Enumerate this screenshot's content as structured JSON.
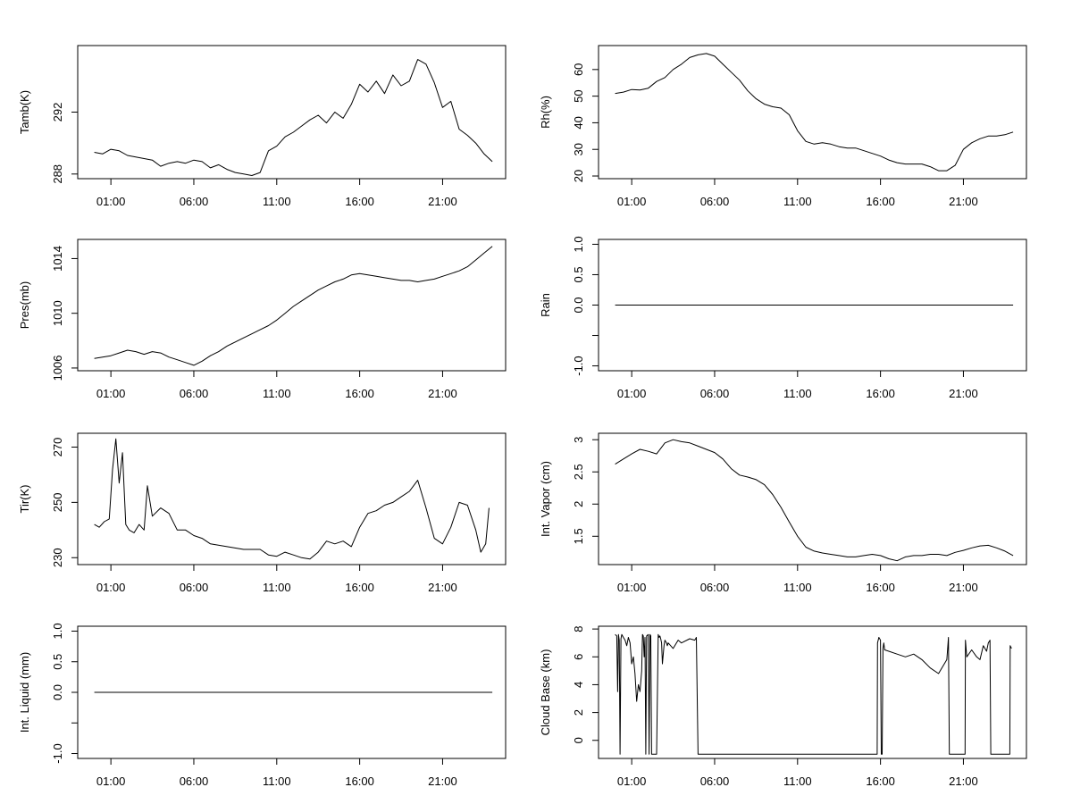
{
  "chart_data": [
    {
      "type": "line",
      "title": "",
      "xlabel": "",
      "ylabel": "Tamb(K)",
      "x_ticks": [
        "01:00",
        "06:00",
        "11:00",
        "16:00",
        "21:00"
      ],
      "x_tick_hours": [
        1,
        6,
        11,
        16,
        21
      ],
      "xlim": [
        -1,
        24.8
      ],
      "ylim": [
        287.7,
        296.3
      ],
      "y_ticks": [
        288,
        292
      ],
      "series": [
        {
          "name": "Tamb",
          "x": [
            0,
            0.5,
            1,
            1.5,
            2,
            2.5,
            3,
            3.5,
            4,
            4.5,
            5,
            5.5,
            6,
            6.5,
            7,
            7.5,
            8,
            8.5,
            9,
            9.5,
            10,
            10.5,
            11,
            11.5,
            12,
            12.5,
            13,
            13.5,
            14,
            14.5,
            15,
            15.5,
            16,
            16.5,
            17,
            17.5,
            18,
            18.5,
            19,
            19.5,
            20,
            20.5,
            21,
            21.5,
            22,
            22.5,
            23,
            23.5,
            24
          ],
          "values": [
            289.4,
            289.3,
            289.6,
            289.5,
            289.2,
            289.1,
            289,
            288.9,
            288.5,
            288.7,
            288.8,
            288.7,
            288.9,
            288.8,
            288.4,
            288.6,
            288.3,
            288.1,
            288,
            287.9,
            288.1,
            289.5,
            289.8,
            290.4,
            290.7,
            291.1,
            291.5,
            291.8,
            291.3,
            292,
            291.6,
            292.5,
            293.8,
            293.3,
            294,
            293.2,
            294.4,
            293.7,
            294,
            295.4,
            295.1,
            293.9,
            292.3,
            292.7,
            290.9,
            290.5,
            290,
            289.3,
            288.8
          ]
        }
      ]
    },
    {
      "type": "line",
      "title": "",
      "xlabel": "",
      "ylabel": "Rh(%)",
      "x_ticks": [
        "01:00",
        "06:00",
        "11:00",
        "16:00",
        "21:00"
      ],
      "x_tick_hours": [
        1,
        6,
        11,
        16,
        21
      ],
      "xlim": [
        -1,
        24.8
      ],
      "ylim": [
        19,
        69
      ],
      "y_ticks": [
        20,
        30,
        40,
        50,
        60
      ],
      "series": [
        {
          "name": "Rh",
          "x": [
            0,
            0.5,
            1,
            1.5,
            2,
            2.5,
            3,
            3.5,
            4,
            4.5,
            5,
            5.5,
            6,
            6.5,
            7,
            7.5,
            8,
            8.5,
            9,
            9.5,
            10,
            10.5,
            11,
            11.5,
            12,
            12.5,
            13,
            13.5,
            14,
            14.5,
            15,
            15.5,
            16,
            16.5,
            17,
            17.5,
            18,
            18.5,
            19,
            19.5,
            20,
            20.5,
            21,
            21.5,
            22,
            22.5,
            23,
            23.5,
            24
          ],
          "values": [
            51,
            51.5,
            52.5,
            52.3,
            53,
            55.5,
            57,
            60,
            62,
            64.5,
            65.5,
            66,
            65,
            62,
            59,
            56,
            52,
            49,
            47,
            46,
            45.5,
            43,
            37,
            33,
            32,
            32.5,
            32,
            31,
            30.5,
            30.5,
            29.5,
            28.5,
            27.5,
            26,
            25,
            24.5,
            24.5,
            24.5,
            23.5,
            22,
            22,
            24,
            30,
            32.5,
            34,
            35,
            35,
            35.5,
            36.5
          ]
        }
      ]
    },
    {
      "type": "line",
      "title": "",
      "xlabel": "",
      "ylabel": "Pres(mb)",
      "x_ticks": [
        "01:00",
        "06:00",
        "11:00",
        "16:00",
        "21:00"
      ],
      "x_tick_hours": [
        1,
        6,
        11,
        16,
        21
      ],
      "xlim": [
        -1,
        24.8
      ],
      "ylim": [
        1005.8,
        1015.4
      ],
      "y_ticks": [
        1006,
        1010,
        1014
      ],
      "series": [
        {
          "name": "Pres",
          "x": [
            0,
            0.5,
            1,
            1.5,
            2,
            2.5,
            3,
            3.5,
            4,
            4.5,
            5,
            5.5,
            6,
            6.5,
            7,
            7.5,
            8,
            8.5,
            9,
            9.5,
            10,
            10.5,
            11,
            11.5,
            12,
            12.5,
            13,
            13.5,
            14,
            14.5,
            15,
            15.5,
            16,
            16.5,
            17,
            17.5,
            18,
            18.5,
            19,
            19.5,
            20,
            20.5,
            21,
            21.5,
            22,
            22.5,
            23,
            23.5,
            24
          ],
          "values": [
            1006.7,
            1006.8,
            1006.9,
            1007.1,
            1007.3,
            1007.2,
            1007,
            1007.2,
            1007.1,
            1006.8,
            1006.6,
            1006.4,
            1006.2,
            1006.5,
            1006.9,
            1007.2,
            1007.6,
            1007.9,
            1008.2,
            1008.5,
            1008.8,
            1009.1,
            1009.5,
            1010,
            1010.5,
            1010.9,
            1011.3,
            1011.7,
            1012,
            1012.3,
            1012.5,
            1012.8,
            1012.9,
            1012.8,
            1012.7,
            1012.6,
            1012.5,
            1012.4,
            1012.4,
            1012.3,
            1012.4,
            1012.5,
            1012.7,
            1012.9,
            1013.1,
            1013.4,
            1013.9,
            1014.4,
            1014.9
          ]
        }
      ]
    },
    {
      "type": "line",
      "title": "",
      "xlabel": "",
      "ylabel": "Rain",
      "x_ticks": [
        "01:00",
        "06:00",
        "11:00",
        "16:00",
        "21:00"
      ],
      "x_tick_hours": [
        1,
        6,
        11,
        16,
        21
      ],
      "xlim": [
        -1,
        24.8
      ],
      "ylim": [
        -1.08,
        1.08
      ],
      "y_ticks": [
        -1.0,
        -0.5,
        0.0,
        0.5,
        1.0
      ],
      "y_tick_labels": [
        "-1.0",
        "",
        "0.0",
        "0.5",
        "1.0"
      ],
      "series": [
        {
          "name": "Rain",
          "x": [
            0,
            24
          ],
          "values": [
            0,
            0
          ]
        }
      ]
    },
    {
      "type": "line",
      "title": "",
      "xlabel": "",
      "ylabel": "Tir(K)",
      "x_ticks": [
        "01:00",
        "06:00",
        "11:00",
        "16:00",
        "21:00"
      ],
      "x_tick_hours": [
        1,
        6,
        11,
        16,
        21
      ],
      "xlim": [
        -1,
        24.8
      ],
      "ylim": [
        227.5,
        275
      ],
      "y_ticks": [
        230,
        250,
        270
      ],
      "series": [
        {
          "name": "Tir",
          "x": [
            0,
            0.3,
            0.6,
            0.9,
            1.1,
            1.3,
            1.5,
            1.7,
            1.9,
            2.1,
            2.4,
            2.7,
            3,
            3.2,
            3.5,
            4,
            4.5,
            5,
            5.5,
            6,
            6.5,
            7,
            8,
            9,
            10,
            10.5,
            11,
            11.5,
            12,
            12.5,
            13,
            13.5,
            14,
            14.5,
            15,
            15.5,
            16,
            16.5,
            17,
            17.5,
            18,
            18.5,
            19,
            19.5,
            20,
            20.5,
            21,
            21.5,
            22,
            22.5,
            23,
            23.3,
            23.6,
            23.8
          ],
          "values": [
            242,
            241,
            243,
            244,
            262,
            273,
            257,
            268,
            242,
            240,
            239,
            242,
            240,
            256,
            245,
            248,
            246,
            240,
            240,
            238,
            237,
            235,
            234,
            233,
            233,
            231,
            230.5,
            232,
            231,
            230,
            229.5,
            232,
            236,
            235,
            236,
            234,
            241,
            246,
            247,
            249,
            250,
            252,
            254,
            258,
            248,
            237,
            235,
            241,
            250,
            249,
            240,
            232,
            235,
            248
          ]
        }
      ]
    },
    {
      "type": "line",
      "title": "",
      "xlabel": "",
      "ylabel": "Int. Vapor (cm)",
      "x_ticks": [
        "01:00",
        "06:00",
        "11:00",
        "16:00",
        "21:00"
      ],
      "x_tick_hours": [
        1,
        6,
        11,
        16,
        21
      ],
      "xlim": [
        -1,
        24.8
      ],
      "ylim": [
        1.06,
        3.1
      ],
      "y_ticks": [
        1.5,
        2.0,
        2.5,
        3.0
      ],
      "series": [
        {
          "name": "Int. Vapor",
          "x": [
            0,
            0.5,
            1,
            1.5,
            2,
            2.5,
            3,
            3.5,
            4,
            4.5,
            5,
            5.5,
            6,
            6.5,
            7,
            7.5,
            8,
            8.5,
            9,
            9.5,
            10,
            10.5,
            11,
            11.5,
            12,
            12.5,
            13,
            13.5,
            14,
            14.5,
            15,
            15.5,
            16,
            16.5,
            17,
            17.5,
            18,
            18.5,
            19,
            19.5,
            20,
            20.5,
            21,
            21.5,
            22,
            22.5,
            23,
            23.5,
            24
          ],
          "values": [
            2.62,
            2.7,
            2.78,
            2.85,
            2.82,
            2.78,
            2.95,
            3.0,
            2.97,
            2.95,
            2.9,
            2.85,
            2.8,
            2.7,
            2.55,
            2.45,
            2.42,
            2.38,
            2.3,
            2.15,
            1.95,
            1.72,
            1.5,
            1.33,
            1.27,
            1.24,
            1.22,
            1.2,
            1.18,
            1.18,
            1.2,
            1.22,
            1.2,
            1.15,
            1.12,
            1.18,
            1.2,
            1.2,
            1.22,
            1.22,
            1.2,
            1.25,
            1.28,
            1.32,
            1.35,
            1.36,
            1.32,
            1.27,
            1.2
          ]
        }
      ]
    },
    {
      "type": "line",
      "title": "",
      "xlabel": "",
      "ylabel": "Int. Liquid (mm)",
      "x_ticks": [
        "01:00",
        "06:00",
        "11:00",
        "16:00",
        "21:00"
      ],
      "x_tick_hours": [
        1,
        6,
        11,
        16,
        21
      ],
      "xlim": [
        -1,
        24.8
      ],
      "ylim": [
        -1.08,
        1.08
      ],
      "y_ticks": [
        -1.0,
        -0.5,
        0.0,
        0.5,
        1.0
      ],
      "y_tick_labels": [
        "-1.0",
        "",
        "0.0",
        "0.5",
        "1.0"
      ],
      "series": [
        {
          "name": "Int. Liquid",
          "x": [
            0,
            24
          ],
          "values": [
            0,
            0
          ]
        }
      ]
    },
    {
      "type": "line",
      "title": "",
      "xlabel": "",
      "ylabel": "Cloud Base (km)",
      "x_ticks": [
        "01:00",
        "06:00",
        "11:00",
        "16:00",
        "21:00"
      ],
      "x_tick_hours": [
        1,
        6,
        11,
        16,
        21
      ],
      "xlim": [
        -1,
        24.8
      ],
      "ylim": [
        -1.3,
        8.2
      ],
      "y_ticks": [
        0,
        2,
        4,
        6,
        8
      ],
      "series": [
        {
          "name": "Cloud Base",
          "x": [
            0,
            0.1,
            0.15,
            0.2,
            0.25,
            0.3,
            0.35,
            0.4,
            0.5,
            0.6,
            0.7,
            0.8,
            0.9,
            1.0,
            1.1,
            1.2,
            1.3,
            1.4,
            1.5,
            1.6,
            1.65,
            1.7,
            1.75,
            1.8,
            1.85,
            1.9,
            2.0,
            2.05,
            2.1,
            2.15,
            2.2,
            2.5,
            2.6,
            2.65,
            2.7,
            2.75,
            2.8,
            2.85,
            2.95,
            3.0,
            3.1,
            3.15,
            3.2,
            3.5,
            3.8,
            4.0,
            4.5,
            4.8,
            4.9,
            5.0,
            15.8,
            15.82,
            15.9,
            16.0,
            16.05,
            16.1,
            16.15,
            16.2,
            16.25,
            16.5,
            17,
            17.5,
            18,
            18.5,
            19,
            19.5,
            20,
            20.1,
            20.15,
            20.2,
            21.1,
            21.12,
            21.2,
            21.5,
            21.8,
            22,
            22.2,
            22.4,
            22.5,
            22.6,
            22.65,
            22.7,
            23.8,
            23.82,
            23.9
          ],
          "values": [
            7.6,
            7.5,
            3.5,
            7.6,
            7.2,
            -1,
            7.3,
            7.6,
            7.4,
            7.2,
            6.8,
            7.4,
            7.0,
            5.5,
            6.0,
            4.8,
            2.8,
            4.0,
            3.5,
            5.0,
            7.6,
            7.5,
            6.0,
            7.4,
            -1,
            7.5,
            7.6,
            -1,
            7.6,
            7.5,
            -1,
            -1,
            7.6,
            7.4,
            7.5,
            7.3,
            7.0,
            5.5,
            6.8,
            7.2,
            7.0,
            6.8,
            7.0,
            6.6,
            7.2,
            7.0,
            7.3,
            7.2,
            7.4,
            -1,
            -1,
            7.0,
            7.4,
            7.2,
            -1,
            -1,
            6.6,
            7.0,
            6.5,
            6.4,
            6.2,
            6.0,
            6.2,
            5.8,
            5.2,
            4.8,
            5.8,
            7.4,
            -1,
            -1,
            -1,
            7.2,
            6.0,
            6.5,
            6.0,
            5.8,
            6.8,
            6.4,
            7.0,
            7.2,
            -1,
            -1,
            -1,
            6.8,
            6.6
          ]
        }
      ]
    }
  ]
}
